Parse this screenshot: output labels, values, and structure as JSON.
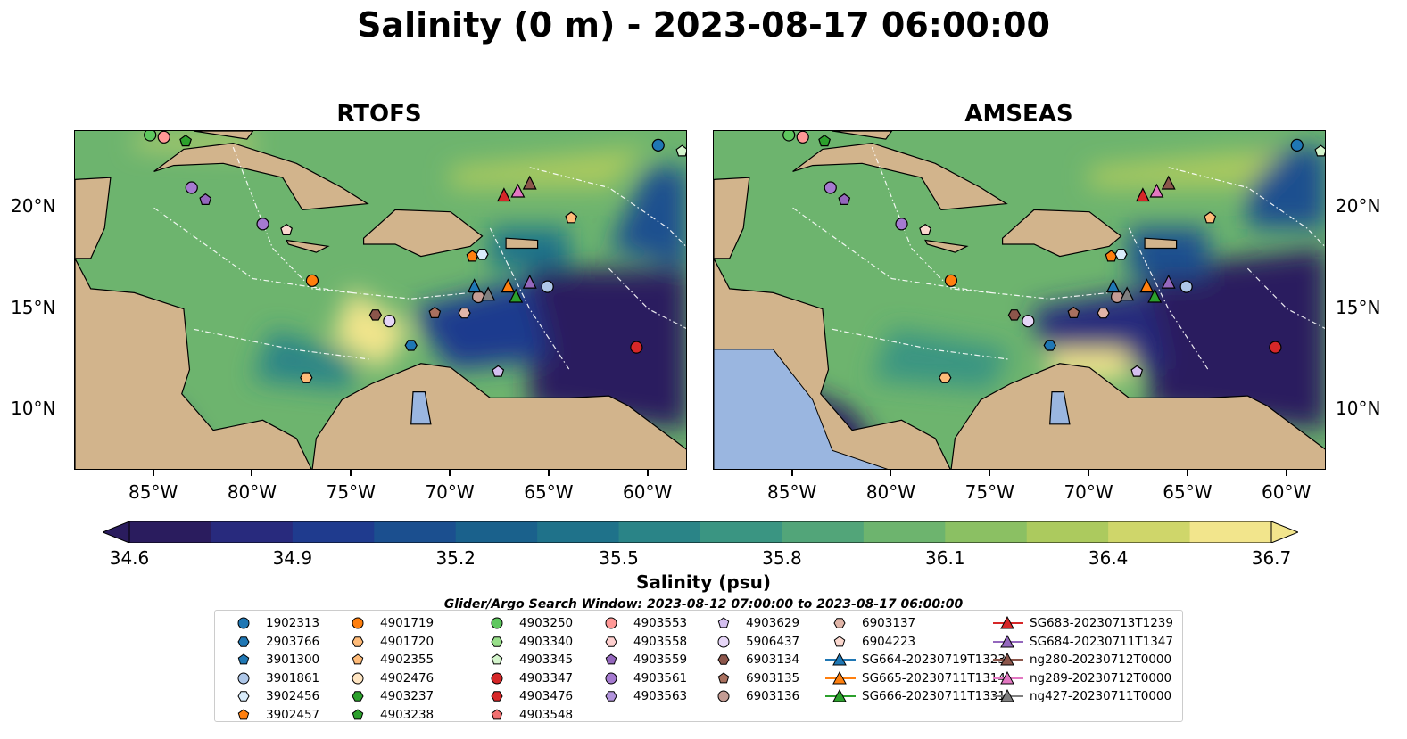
{
  "title": "Salinity (0 m) - 2023-08-17 06:00:00",
  "panels": [
    {
      "title": "RTOFS",
      "variant": "rtofs"
    },
    {
      "title": "AMSEAS",
      "variant": "amseas"
    }
  ],
  "axes": {
    "lon_ticks": [
      "85°W",
      "80°W",
      "75°W",
      "70°W",
      "65°W",
      "60°W"
    ],
    "lon_values": [
      -85,
      -80,
      -75,
      -70,
      -65,
      -60
    ],
    "lat_ticks": [
      "20°N",
      "15°N",
      "10°N"
    ],
    "lat_values": [
      20,
      15,
      10
    ],
    "lon_range": [
      -89,
      -58
    ],
    "lat_range": [
      7,
      23.8
    ]
  },
  "colorbar": {
    "label": "Salinity (psu)",
    "ticks": [
      "34.6",
      "34.9",
      "35.2",
      "35.5",
      "35.8",
      "36.1",
      "36.4",
      "36.7"
    ],
    "range": [
      34.6,
      36.7
    ],
    "colormap": "haline",
    "colors": [
      "#2a1c5e",
      "#282a7d",
      "#1f3b8e",
      "#1b4f8f",
      "#1a618c",
      "#1f728a",
      "#2a8487",
      "#3a9582",
      "#52a579",
      "#6db46e",
      "#8bc063",
      "#acca5e",
      "#cfd66a",
      "#f2e58c"
    ]
  },
  "search_window": "Glider/Argo Search Window: 2023-08-12 07:00:00 to 2023-08-17 06:00:00",
  "legend": {
    "columns": [
      [
        {
          "label": "1902313",
          "marker": "circle",
          "color": "#1f77b4"
        },
        {
          "label": "2903766",
          "marker": "hexagon",
          "color": "#1f77b4"
        },
        {
          "label": "3901300",
          "marker": "pentagon",
          "color": "#1f77b4"
        },
        {
          "label": "3901861",
          "marker": "circle",
          "color": "#aec7e8"
        },
        {
          "label": "3902456",
          "marker": "hexagon",
          "color": "#d9ecfb"
        },
        {
          "label": "3902457",
          "marker": "pentagon",
          "color": "#ff7f0e"
        }
      ],
      [
        {
          "label": "4901719",
          "marker": "circle",
          "color": "#ff7f0e"
        },
        {
          "label": "4901720",
          "marker": "hexagon",
          "color": "#ffbb78"
        },
        {
          "label": "4902355",
          "marker": "pentagon",
          "color": "#ffbb78"
        },
        {
          "label": "4902476",
          "marker": "circle",
          "color": "#ffe5c2"
        },
        {
          "label": "4903237",
          "marker": "hexagon",
          "color": "#2ca02c"
        },
        {
          "label": "4903238",
          "marker": "pentagon",
          "color": "#2ca02c"
        }
      ],
      [
        {
          "label": "4903250",
          "marker": "circle",
          "color": "#5ec75e"
        },
        {
          "label": "4903340",
          "marker": "hexagon",
          "color": "#98df8a"
        },
        {
          "label": "4903345",
          "marker": "pentagon",
          "color": "#d4f5cc"
        },
        {
          "label": "4903347",
          "marker": "circle",
          "color": "#d62728"
        },
        {
          "label": "4903476",
          "marker": "hexagon",
          "color": "#d62728"
        },
        {
          "label": "4903548",
          "marker": "pentagon",
          "color": "#f07070"
        }
      ],
      [
        {
          "label": "4903553",
          "marker": "circle",
          "color": "#ff9896"
        },
        {
          "label": "4903558",
          "marker": "hexagon",
          "color": "#ffd0cf"
        },
        {
          "label": "4903559",
          "marker": "pentagon",
          "color": "#9467bd"
        },
        {
          "label": "4903561",
          "marker": "circle",
          "color": "#a57ad0"
        },
        {
          "label": "4903563",
          "marker": "hexagon",
          "color": "#b294dc"
        }
      ],
      [
        {
          "label": "4903629",
          "marker": "pentagon",
          "color": "#d4bff0"
        },
        {
          "label": "5906437",
          "marker": "circle",
          "color": "#e6d6f7"
        },
        {
          "label": "6903134",
          "marker": "hexagon",
          "color": "#8c564b"
        },
        {
          "label": "6903135",
          "marker": "pentagon",
          "color": "#a9705f"
        },
        {
          "label": "6903136",
          "marker": "circle",
          "color": "#c49c94"
        }
      ],
      [
        {
          "label": "6903137",
          "marker": "hexagon",
          "color": "#e0b5a8"
        },
        {
          "label": "6904223",
          "marker": "pentagon",
          "color": "#fbd8cf"
        },
        {
          "label": "SG664-20230719T1323",
          "marker": "triangle-line",
          "color": "#1f77b4"
        },
        {
          "label": "SG665-20230711T1314",
          "marker": "triangle-line",
          "color": "#ff7f0e"
        },
        {
          "label": "SG666-20230711T1331",
          "marker": "triangle-line",
          "color": "#2ca02c"
        }
      ],
      [
        {
          "label": "SG683-20230713T1239",
          "marker": "triangle-line",
          "color": "#d62728"
        },
        {
          "label": "SG684-20230711T1347",
          "marker": "triangle-line",
          "color": "#9467bd"
        },
        {
          "label": "ng280-20230712T0000",
          "marker": "triangle-line",
          "color": "#8c564b"
        },
        {
          "label": "ng289-20230712T0000",
          "marker": "triangle-line",
          "color": "#e377c2"
        },
        {
          "label": "ng427-20230711T0000",
          "marker": "triangle-line",
          "color": "#7f7f7f"
        }
      ]
    ]
  },
  "chart_data": {
    "type": "heatmap",
    "title": "Salinity (0 m) - 2023-08-17 06:00:00",
    "subplots": [
      "RTOFS",
      "AMSEAS"
    ],
    "variable": "Salinity (psu)",
    "depth_m": 0,
    "clim": [
      34.6,
      36.7
    ],
    "xlim": [
      -89,
      -58
    ],
    "ylim": [
      7,
      23.8
    ],
    "observations": [
      {
        "id": "1902313",
        "lon": -59.5,
        "lat": 23.1
      },
      {
        "id": "4903250",
        "lon": -85.2,
        "lat": 23.6
      },
      {
        "id": "4903553",
        "lon": -84.5,
        "lat": 23.5
      },
      {
        "id": "4903238",
        "lon": -83.4,
        "lat": 23.3
      },
      {
        "id": "4903345",
        "lon": -58.3,
        "lat": 22.8
      },
      {
        "id": "4903561",
        "lon": -83.1,
        "lat": 21.0
      },
      {
        "id": "4903559",
        "lon": -82.4,
        "lat": 20.4
      },
      {
        "id": "4903561b",
        "lon": -79.5,
        "lat": 19.2
      },
      {
        "id": "6904223",
        "lon": -78.3,
        "lat": 18.9
      },
      {
        "id": "4902355",
        "lon": -63.9,
        "lat": 19.5
      },
      {
        "id": "3902457",
        "lon": -68.9,
        "lat": 17.6
      },
      {
        "id": "3902456",
        "lon": -68.4,
        "lat": 17.7
      },
      {
        "id": "4901719",
        "lon": -77.0,
        "lat": 16.4
      },
      {
        "id": "6903136",
        "lon": -68.6,
        "lat": 15.6
      },
      {
        "id": "3901861",
        "lon": -65.1,
        "lat": 16.1
      },
      {
        "id": "6903134",
        "lon": -73.8,
        "lat": 14.7
      },
      {
        "id": "5906437",
        "lon": -73.1,
        "lat": 14.4
      },
      {
        "id": "6903135",
        "lon": -70.8,
        "lat": 14.8
      },
      {
        "id": "6903137",
        "lon": -69.3,
        "lat": 14.8
      },
      {
        "id": "2903766",
        "lon": -72.0,
        "lat": 13.2
      },
      {
        "id": "4901720",
        "lon": -77.3,
        "lat": 11.6
      },
      {
        "id": "4903629",
        "lon": -67.6,
        "lat": 11.9
      },
      {
        "id": "4903347",
        "lon": -60.6,
        "lat": 13.1
      },
      {
        "id": "SG683-20230713T1239",
        "lon": -67.3,
        "lat": 20.6
      },
      {
        "id": "ng289-20230712T0000",
        "lon": -66.6,
        "lat": 20.8
      },
      {
        "id": "ng280-20230712T0000",
        "lon": -66.0,
        "lat": 21.2
      },
      {
        "id": "SG664-20230719T1323",
        "lon": -68.8,
        "lat": 16.1
      },
      {
        "id": "SG665-20230711T1314",
        "lon": -67.1,
        "lat": 16.1
      },
      {
        "id": "SG666-20230711T1331",
        "lon": -66.7,
        "lat": 15.6
      },
      {
        "id": "ng427-20230711T0000",
        "lon": -68.1,
        "lat": 15.7
      },
      {
        "id": "SG684-20230711T1347",
        "lon": -66.0,
        "lat": 16.3
      }
    ]
  }
}
